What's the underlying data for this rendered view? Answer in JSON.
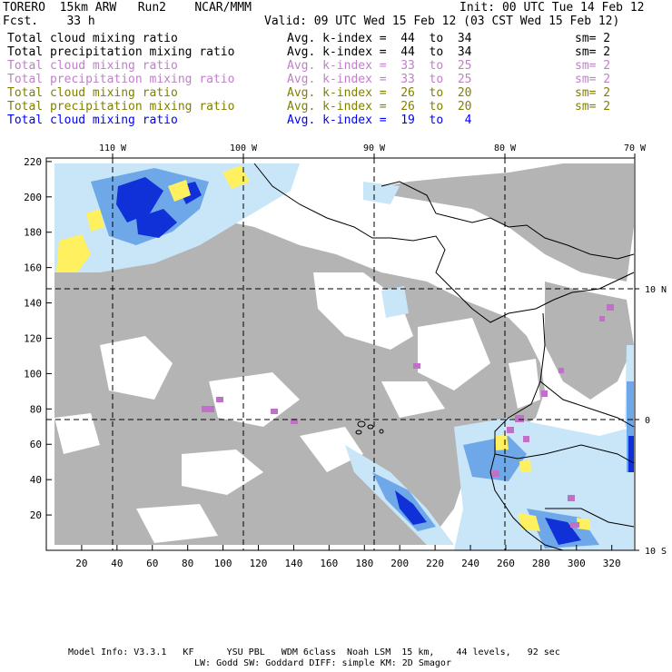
{
  "header": {
    "model_name": "TORERO  15km ARW   Run2    NCAR/MMM",
    "init": "Init: 00 UTC Tue 14 Feb 12",
    "forecast": "Fcst.    33 h",
    "valid": "Valid: 09 UTC Wed 15 Feb 12 (03 CST Wed 15 Feb 12)"
  },
  "legend": [
    {
      "field": "Total cloud mixing ratio",
      "avg": "Avg. k-index =  44  to  34",
      "sm": "sm= 2",
      "color": "#000000"
    },
    {
      "field": "Total precipitation mixing ratio",
      "avg": "Avg. k-index =  44  to  34",
      "sm": "sm= 2",
      "color": "#000000"
    },
    {
      "field": "Total cloud mixing ratio",
      "avg": "Avg. k-index =  33  to  25",
      "sm": "sm= 2",
      "color": "#c080c8"
    },
    {
      "field": "Total precipitation mixing ratio",
      "avg": "Avg. k-index =  33  to  25",
      "sm": "sm= 2",
      "color": "#c080c8"
    },
    {
      "field": "Total cloud mixing ratio",
      "avg": "Avg. k-index =  26  to  20",
      "sm": "sm= 2",
      "color": "#808000"
    },
    {
      "field": "Total precipitation mixing ratio",
      "avg": "Avg. k-index =  26  to  20",
      "sm": "sm= 2",
      "color": "#808000"
    },
    {
      "field": "Total cloud mixing ratio",
      "avg": "Avg. k-index =  19  to   4",
      "sm": "",
      "color": "#0000ff"
    }
  ],
  "map": {
    "lon_labels": [
      "110 W",
      "100 W",
      "90 W",
      "80 W",
      "70 W"
    ],
    "lat_labels": [
      "10 N",
      "0",
      "10 S"
    ],
    "x_ticks": [
      "20",
      "40",
      "60",
      "80",
      "100",
      "120",
      "140",
      "160",
      "180",
      "200",
      "220",
      "240",
      "260",
      "280",
      "300",
      "320"
    ],
    "y_ticks": [
      "20",
      "40",
      "60",
      "80",
      "100",
      "120",
      "140",
      "160",
      "180",
      "200",
      "220"
    ],
    "colors": {
      "gray_cloud": "#b4b4b4",
      "light_blue": "#c8e6f8",
      "mid_blue": "#6fa8e8",
      "dark_blue": "#1030d8",
      "yellow": "#fff060",
      "purple": "#c070c8"
    }
  },
  "footer": {
    "line1": "Model Info: V3.3.1   KF      YSU PBL   WDM 6class  Noah LSM  15 km,    44 levels,   92 sec",
    "line2": "LW: Godd SW: Goddard DIFF: simple KM: 2D Smagor"
  }
}
